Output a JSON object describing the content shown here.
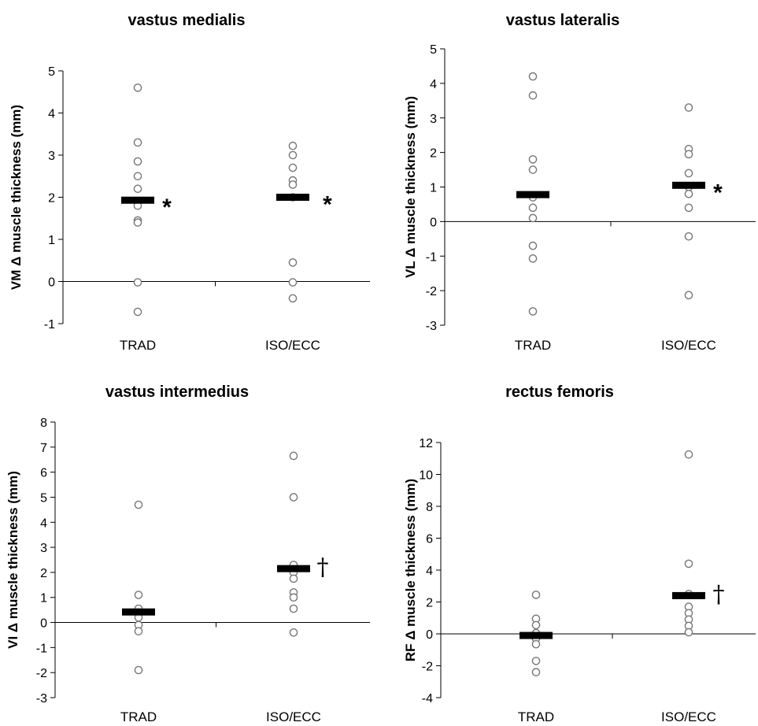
{
  "chart_data": [
    {
      "type": "scatter",
      "title": "vastus medialis",
      "ylabel": "VM Δ muscle thickness (mm)",
      "ylim": [
        -1,
        5
      ],
      "yticks": [
        -1,
        0,
        1,
        2,
        3,
        4,
        5
      ],
      "categories": [
        "TRAD",
        "ISO/ECC"
      ],
      "points": [
        [
          4.6,
          3.3,
          2.85,
          2.5,
          2.2,
          1.8,
          1.45,
          1.4,
          -0.02,
          -0.72
        ],
        [
          3.22,
          3.0,
          2.7,
          2.4,
          2.3,
          2.0,
          0.45,
          -0.02,
          -0.4
        ]
      ],
      "means": [
        1.93,
        2.0
      ],
      "markers": [
        "*",
        "*"
      ]
    },
    {
      "type": "scatter",
      "title": "vastus lateralis",
      "ylabel": "VL Δ muscle thickness (mm)",
      "ylim": [
        -3,
        5
      ],
      "yticks": [
        -3,
        -2,
        -1,
        0,
        1,
        2,
        3,
        4,
        5
      ],
      "categories": [
        "TRAD",
        "ISO/ECC"
      ],
      "points": [
        [
          4.2,
          3.65,
          1.8,
          1.5,
          0.7,
          0.4,
          0.1,
          -0.7,
          -1.07,
          -2.6
        ],
        [
          3.3,
          2.1,
          1.95,
          1.4,
          1.0,
          0.8,
          0.4,
          -0.43,
          -2.13
        ]
      ],
      "means": [
        0.78,
        1.05
      ],
      "markers": [
        "",
        "*"
      ]
    },
    {
      "type": "scatter",
      "title": "vastus intermedius",
      "ylabel": "VI Δ muscle thickness (mm)",
      "ylim": [
        -3,
        8
      ],
      "yticks": [
        -3,
        -2,
        -1,
        0,
        1,
        2,
        3,
        4,
        5,
        6,
        7,
        8
      ],
      "categories": [
        "TRAD",
        "ISO/ECC"
      ],
      "points": [
        [
          4.7,
          1.1,
          0.55,
          0.4,
          0.2,
          -0.1,
          -0.35,
          -1.9
        ],
        [
          6.65,
          5.0,
          2.3,
          2.0,
          1.75,
          1.2,
          1.0,
          0.55,
          -0.4
        ]
      ],
      "means": [
        0.42,
        2.15
      ],
      "markers": [
        "",
        "†"
      ]
    },
    {
      "type": "scatter",
      "title": "rectus femoris",
      "ylabel": "RF Δ muscle thickness (mm)",
      "ylim": [
        -4,
        12
      ],
      "yticks": [
        -4,
        -2,
        0,
        2,
        4,
        6,
        8,
        10,
        12
      ],
      "categories": [
        "TRAD",
        "ISO/ECC"
      ],
      "points": [
        [
          2.45,
          0.95,
          0.55,
          0.05,
          -0.3,
          -0.65,
          -1.7,
          -2.4
        ],
        [
          11.25,
          4.4,
          2.5,
          1.7,
          1.3,
          0.9,
          0.5,
          0.1
        ]
      ],
      "means": [
        -0.1,
        2.4
      ],
      "markers": [
        "",
        "†"
      ]
    }
  ]
}
